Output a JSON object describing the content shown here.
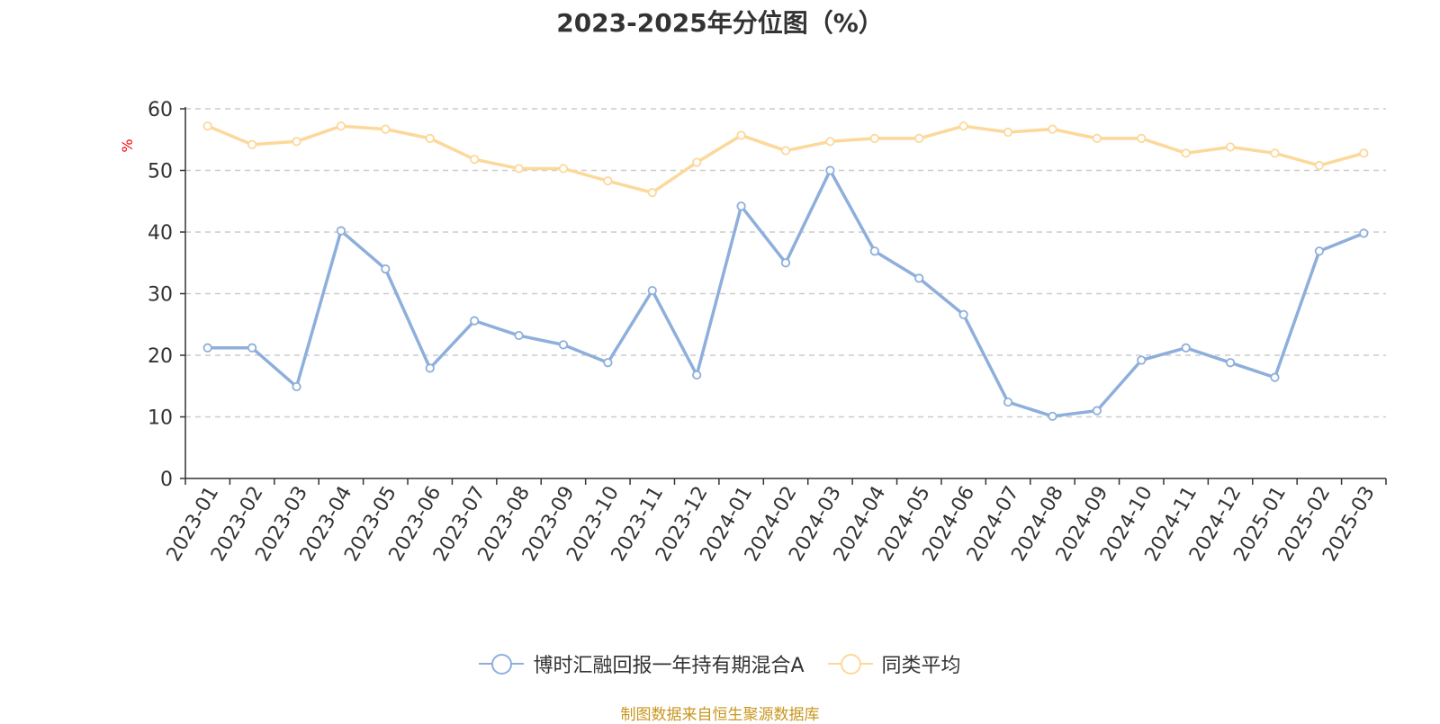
{
  "chart_data": {
    "type": "line",
    "title": "2023-2025年分位图（%）",
    "ylabel": "%",
    "xlabel": "",
    "ylim": [
      0,
      60
    ],
    "yticks": [
      0,
      10,
      20,
      30,
      40,
      50,
      60
    ],
    "grid": true,
    "legend_position": "bottom",
    "categories": [
      "2023-01",
      "2023-02",
      "2023-03",
      "2023-04",
      "2023-05",
      "2023-06",
      "2023-07",
      "2023-08",
      "2023-09",
      "2023-10",
      "2023-11",
      "2023-12",
      "2024-01",
      "2024-02",
      "2024-03",
      "2024-04",
      "2024-05",
      "2024-06",
      "2024-07",
      "2024-08",
      "2024-09",
      "2024-10",
      "2024-11",
      "2024-12",
      "2025-01",
      "2025-02",
      "2025-03"
    ],
    "series": [
      {
        "name": "博时汇融回报一年持有期混合A",
        "color": "#8eafdb",
        "values": [
          21.2,
          21.2,
          14.9,
          40.2,
          34.0,
          17.9,
          25.6,
          23.2,
          21.7,
          18.8,
          30.5,
          16.8,
          44.2,
          35.0,
          50.0,
          36.9,
          32.5,
          26.6,
          12.4,
          10.1,
          11.0,
          19.2,
          21.2,
          18.8,
          16.4,
          36.9,
          39.8
        ]
      },
      {
        "name": "同类平均",
        "color": "#fcd89a",
        "values": [
          57.2,
          54.2,
          54.7,
          57.2,
          56.7,
          55.2,
          51.8,
          50.3,
          50.3,
          48.3,
          46.4,
          51.3,
          55.7,
          53.2,
          54.7,
          55.2,
          55.2,
          57.2,
          56.2,
          56.7,
          55.2,
          55.2,
          52.8,
          53.8,
          52.8,
          50.8,
          52.8
        ]
      }
    ]
  },
  "source_note": "制图数据来自恒生聚源数据库"
}
